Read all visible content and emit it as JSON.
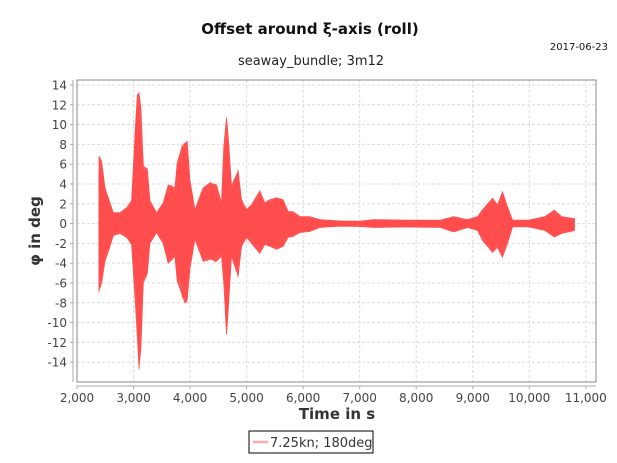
{
  "chart_data": {
    "type": "area",
    "title": "Offset around ξ-axis (roll)",
    "subtitle": "seaway_bundle; 3m12",
    "date": "2017-06-23",
    "xlabel": "Time in s",
    "ylabel": "φ in deg",
    "xlim": [
      2000,
      11180
    ],
    "ylim": [
      -16,
      14.5
    ],
    "xticks": [
      2000,
      3000,
      4000,
      5000,
      6000,
      7000,
      8000,
      9000,
      10000,
      11000
    ],
    "xtick_labels": [
      "2,000",
      "3,000",
      "4,000",
      "5,000",
      "6,000",
      "7,000",
      "8,000",
      "9,000",
      "10,000",
      "11,000"
    ],
    "yticks": [
      -14,
      -12,
      -10,
      -8,
      -6,
      -4,
      -2,
      0,
      2,
      4,
      6,
      8,
      10,
      12,
      14
    ],
    "yticks_labels": [
      "-14",
      "-12",
      "-10",
      "-8",
      "-6",
      "-4",
      "-2",
      "0",
      "2",
      "4",
      "6",
      "8",
      "10",
      "12",
      "14"
    ],
    "grid": true,
    "legend_position": "bottom",
    "series": [
      {
        "name": "7.25kn; 180deg",
        "color": "#ff5555",
        "legend_color": "#ffaaaa",
        "envelope": {
          "t": [
            2389,
            2436,
            2495,
            2583,
            2642,
            2760,
            2878,
            2966,
            3025,
            3066,
            3096,
            3131,
            3172,
            3243,
            3290,
            3408,
            3525,
            3614,
            3732,
            3773,
            3849,
            3908,
            3950,
            3997,
            4085,
            4232,
            4350,
            4468,
            4556,
            4597,
            4645,
            4674,
            4733,
            4851,
            4910,
            4998,
            5086,
            5234,
            5322,
            5410,
            5528,
            5646,
            5734,
            5823,
            5940,
            6117,
            6294,
            6647,
            7000,
            7247,
            7830,
            8431,
            8660,
            8908,
            9085,
            9173,
            9350,
            9438,
            9527,
            9615,
            9703,
            9986,
            10277,
            10445,
            10569,
            10799
          ],
          "max": [
            6.8,
            6.3,
            3.6,
            2.1,
            1.1,
            1.1,
            1.6,
            2.3,
            8.8,
            13.0,
            13.2,
            11.7,
            5.8,
            5.5,
            2.3,
            1.1,
            2.1,
            3.9,
            3.6,
            6.1,
            7.6,
            8.1,
            8.3,
            4.4,
            1.4,
            3.6,
            4.1,
            3.9,
            2.1,
            7.8,
            10.7,
            8.8,
            3.8,
            5.3,
            2.4,
            1.4,
            1.9,
            3.3,
            2.1,
            2.4,
            2.6,
            2.4,
            1.2,
            1.2,
            0.7,
            0.7,
            0.4,
            0.27,
            0.25,
            0.4,
            0.35,
            0.35,
            0.7,
            0.4,
            0.7,
            1.4,
            2.55,
            1.9,
            3.2,
            1.7,
            0.34,
            0.34,
            0.7,
            1.36,
            0.7,
            0.5
          ],
          "min": [
            -6.8,
            -6.0,
            -3.8,
            -2.3,
            -1.2,
            -1.0,
            -1.4,
            -2.1,
            -7.3,
            -11.4,
            -14.6,
            -12.6,
            -6.0,
            -5.0,
            -2.0,
            -0.9,
            -2.0,
            -4.0,
            -3.3,
            -5.8,
            -7.0,
            -8.0,
            -7.7,
            -4.6,
            -1.6,
            -3.8,
            -3.6,
            -3.8,
            -3.3,
            -6.0,
            -11.2,
            -8.7,
            -3.3,
            -5.3,
            -2.3,
            -1.4,
            -2.0,
            -3.0,
            -2.1,
            -2.3,
            -2.6,
            -2.3,
            -1.4,
            -1.3,
            -0.9,
            -0.8,
            -0.4,
            -0.27,
            -0.3,
            -0.4,
            -0.35,
            -0.4,
            -0.85,
            -0.4,
            -0.7,
            -1.7,
            -2.9,
            -2.4,
            -3.4,
            -2.0,
            -0.34,
            -0.34,
            -0.7,
            -1.36,
            -1.0,
            -0.7
          ]
        }
      }
    ]
  }
}
